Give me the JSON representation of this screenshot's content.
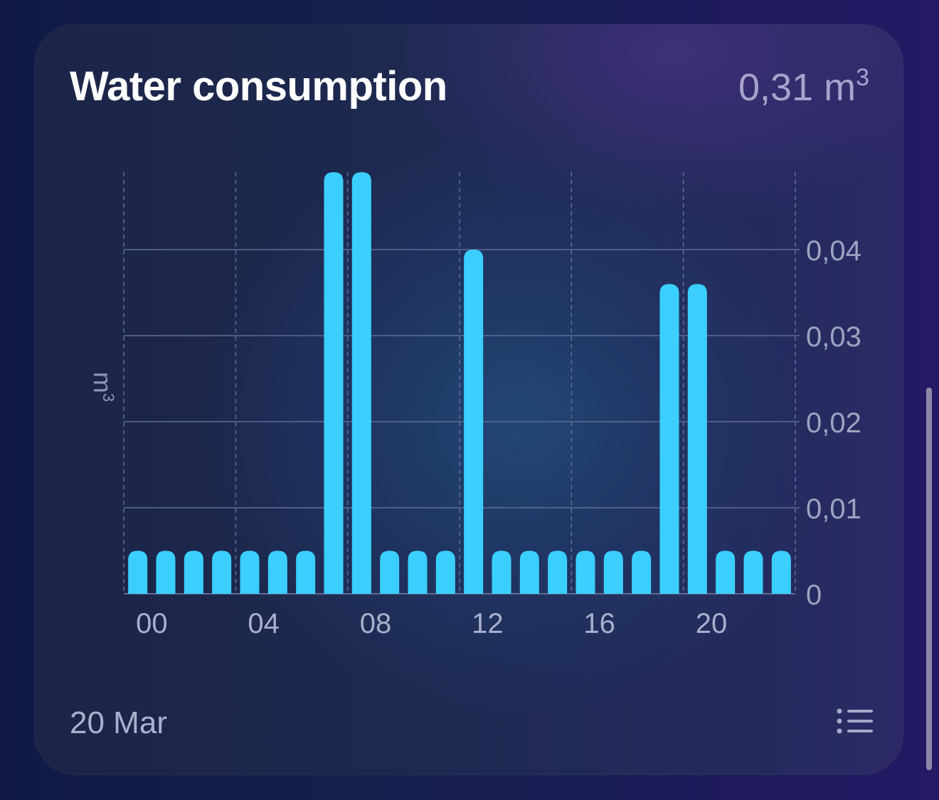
{
  "card": {
    "title": "Water consumption",
    "total_value": "0,31 m",
    "total_unit_sup": "3",
    "date": "20 Mar",
    "list_icon": "list-icon",
    "y_unit": "m",
    "y_unit_sup": "3"
  },
  "colors": {
    "bar": "#3acfff",
    "grid": "#5f6d95",
    "title": "#ffffff",
    "total": "#a7a3cd"
  },
  "chart_data": {
    "type": "bar",
    "title": "Water consumption",
    "subtitle": "20 Mar",
    "total": "0,31 m³",
    "xlabel": "",
    "ylabel": "m³",
    "x": [
      "00",
      "01",
      "02",
      "03",
      "04",
      "05",
      "06",
      "07",
      "08",
      "09",
      "10",
      "11",
      "12",
      "13",
      "14",
      "15",
      "16",
      "17",
      "18",
      "19",
      "20",
      "21",
      "22",
      "23"
    ],
    "x_tick_labels": [
      "00",
      "04",
      "08",
      "12",
      "16",
      "20"
    ],
    "values": [
      0.005,
      0.005,
      0.005,
      0.005,
      0.005,
      0.005,
      0.005,
      0.049,
      0.049,
      0.005,
      0.005,
      0.005,
      0.04,
      0.005,
      0.005,
      0.005,
      0.005,
      0.005,
      0.005,
      0.036,
      0.036,
      0.005,
      0.005,
      0.005
    ],
    "y_ticks": [
      0,
      0.01,
      0.02,
      0.03,
      0.04
    ],
    "y_tick_labels": [
      "0",
      "0,01",
      "0,02",
      "0,03",
      "0,04"
    ],
    "ylim": [
      0,
      0.049
    ],
    "y_axis_position": "right",
    "grid": true
  }
}
